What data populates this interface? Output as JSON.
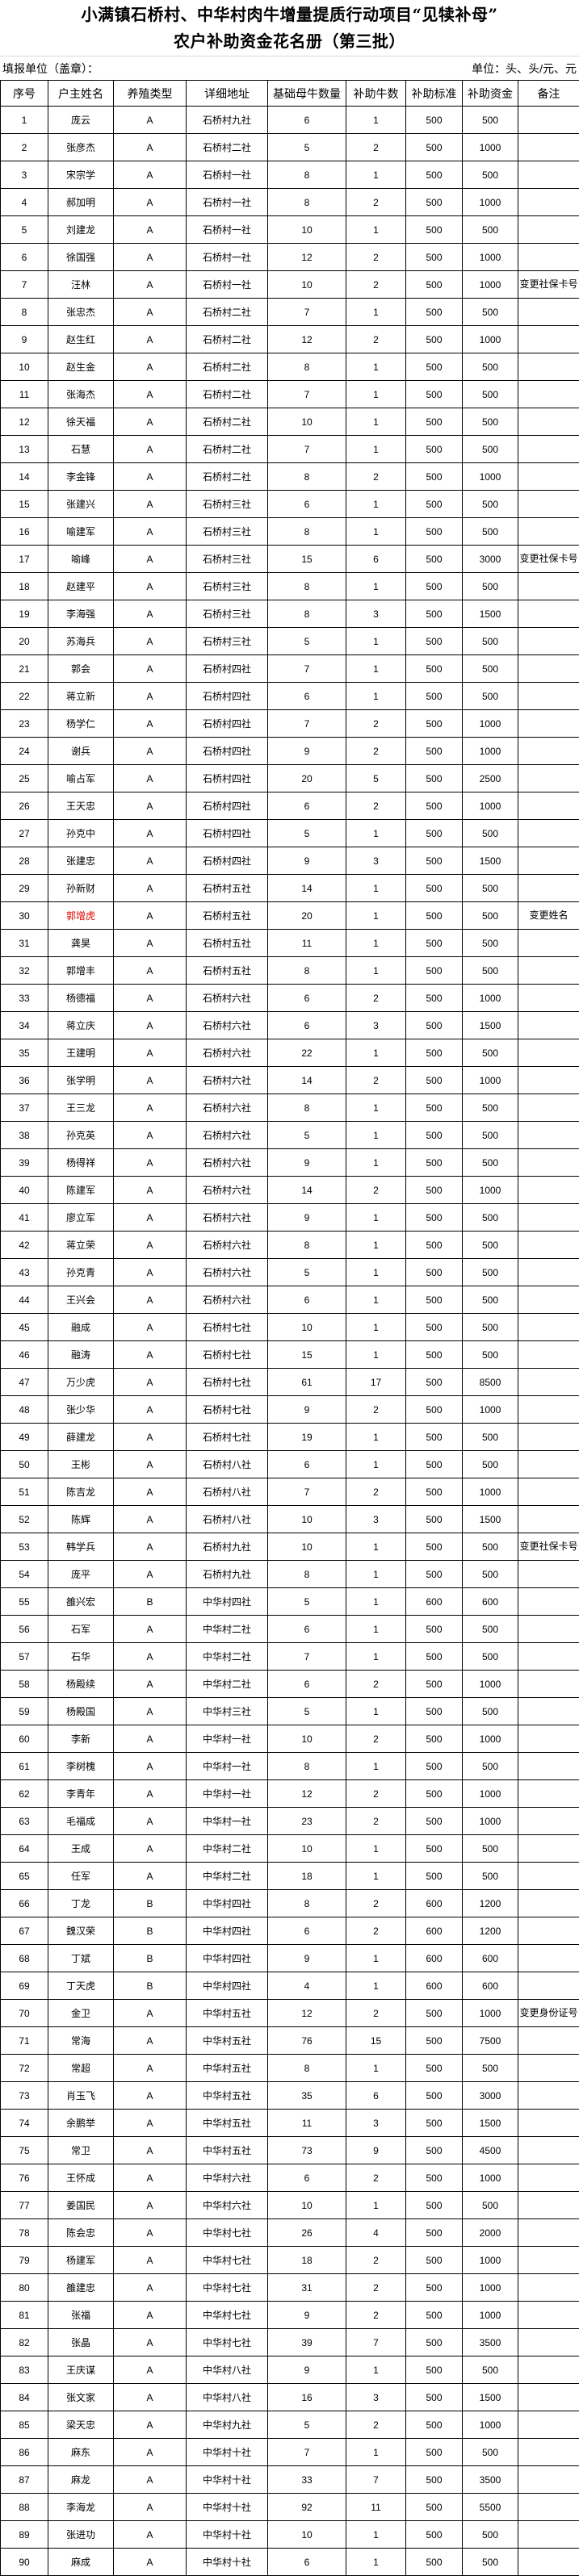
{
  "title": {
    "line1": "小满镇石桥村、中华村肉牛增量提质行动项目“见犊补母”",
    "line2": "农户补助资金花名册（第三批）"
  },
  "unit_left": "填报单位（盖章）：",
  "unit_right": "单位：头、头/元、元",
  "headers": [
    "序号",
    "户主姓名",
    "养殖类型",
    "详细地址",
    "基础母牛数量",
    "补助牛数",
    "补助标准",
    "补助资金",
    "备注"
  ],
  "highlight_color": "#e00000",
  "rows": [
    [
      "1",
      "庞云",
      "A",
      "石桥村九社",
      "6",
      "1",
      "500",
      "500",
      ""
    ],
    [
      "2",
      "张彦杰",
      "A",
      "石桥村二社",
      "5",
      "2",
      "500",
      "1000",
      ""
    ],
    [
      "3",
      "宋宗学",
      "A",
      "石桥村一社",
      "8",
      "1",
      "500",
      "500",
      ""
    ],
    [
      "4",
      "郝加明",
      "A",
      "石桥村一社",
      "8",
      "2",
      "500",
      "1000",
      ""
    ],
    [
      "5",
      "刘建龙",
      "A",
      "石桥村一社",
      "10",
      "1",
      "500",
      "500",
      ""
    ],
    [
      "6",
      "徐国强",
      "A",
      "石桥村一社",
      "12",
      "2",
      "500",
      "1000",
      ""
    ],
    [
      "7",
      "汪林",
      "A",
      "石桥村一社",
      "10",
      "2",
      "500",
      "1000",
      "变更社保卡号"
    ],
    [
      "8",
      "张忠杰",
      "A",
      "石桥村二社",
      "7",
      "1",
      "500",
      "500",
      ""
    ],
    [
      "9",
      "赵生红",
      "A",
      "石桥村二社",
      "12",
      "2",
      "500",
      "1000",
      ""
    ],
    [
      "10",
      "赵生金",
      "A",
      "石桥村二社",
      "8",
      "1",
      "500",
      "500",
      ""
    ],
    [
      "11",
      "张海杰",
      "A",
      "石桥村二社",
      "7",
      "1",
      "500",
      "500",
      ""
    ],
    [
      "12",
      "徐天福",
      "A",
      "石桥村二社",
      "10",
      "1",
      "500",
      "500",
      ""
    ],
    [
      "13",
      "石慧",
      "A",
      "石桥村二社",
      "7",
      "1",
      "500",
      "500",
      ""
    ],
    [
      "14",
      "李金锋",
      "A",
      "石桥村二社",
      "8",
      "2",
      "500",
      "1000",
      ""
    ],
    [
      "15",
      "张建兴",
      "A",
      "石桥村三社",
      "6",
      "1",
      "500",
      "500",
      ""
    ],
    [
      "16",
      "喻建军",
      "A",
      "石桥村三社",
      "8",
      "1",
      "500",
      "500",
      ""
    ],
    [
      "17",
      "喻峰",
      "A",
      "石桥村三社",
      "15",
      "6",
      "500",
      "3000",
      "变更社保卡号"
    ],
    [
      "18",
      "赵建平",
      "A",
      "石桥村三社",
      "8",
      "1",
      "500",
      "500",
      ""
    ],
    [
      "19",
      "李海强",
      "A",
      "石桥村三社",
      "8",
      "3",
      "500",
      "1500",
      ""
    ],
    [
      "20",
      "苏海兵",
      "A",
      "石桥村三社",
      "5",
      "1",
      "500",
      "500",
      ""
    ],
    [
      "21",
      "郭会",
      "A",
      "石桥村四社",
      "7",
      "1",
      "500",
      "500",
      ""
    ],
    [
      "22",
      "蒋立新",
      "A",
      "石桥村四社",
      "6",
      "1",
      "500",
      "500",
      ""
    ],
    [
      "23",
      "杨学仁",
      "A",
      "石桥村四社",
      "7",
      "2",
      "500",
      "1000",
      ""
    ],
    [
      "24",
      "谢兵",
      "A",
      "石桥村四社",
      "9",
      "2",
      "500",
      "1000",
      ""
    ],
    [
      "25",
      "喻占军",
      "A",
      "石桥村四社",
      "20",
      "5",
      "500",
      "2500",
      ""
    ],
    [
      "26",
      "王天忠",
      "A",
      "石桥村四社",
      "6",
      "2",
      "500",
      "1000",
      ""
    ],
    [
      "27",
      "孙克中",
      "A",
      "石桥村四社",
      "5",
      "1",
      "500",
      "500",
      ""
    ],
    [
      "28",
      "张建忠",
      "A",
      "石桥村四社",
      "9",
      "3",
      "500",
      "1500",
      ""
    ],
    [
      "29",
      "孙新财",
      "A",
      "石桥村五社",
      "14",
      "1",
      "500",
      "500",
      ""
    ],
    [
      "30",
      "郭增虎",
      "A",
      "石桥村五社",
      "20",
      "1",
      "500",
      "500",
      "变更姓名"
    ],
    [
      "31",
      "龚昊",
      "A",
      "石桥村五社",
      "11",
      "1",
      "500",
      "500",
      ""
    ],
    [
      "32",
      "郭增丰",
      "A",
      "石桥村五社",
      "8",
      "1",
      "500",
      "500",
      ""
    ],
    [
      "33",
      "杨德福",
      "A",
      "石桥村六社",
      "6",
      "2",
      "500",
      "1000",
      ""
    ],
    [
      "34",
      "蒋立庆",
      "A",
      "石桥村六社",
      "6",
      "3",
      "500",
      "1500",
      ""
    ],
    [
      "35",
      "王建明",
      "A",
      "石桥村六社",
      "22",
      "1",
      "500",
      "500",
      ""
    ],
    [
      "36",
      "张学明",
      "A",
      "石桥村六社",
      "14",
      "2",
      "500",
      "1000",
      ""
    ],
    [
      "37",
      "王三龙",
      "A",
      "石桥村六社",
      "8",
      "1",
      "500",
      "500",
      ""
    ],
    [
      "38",
      "孙克英",
      "A",
      "石桥村六社",
      "5",
      "1",
      "500",
      "500",
      ""
    ],
    [
      "39",
      "杨得祥",
      "A",
      "石桥村六社",
      "9",
      "1",
      "500",
      "500",
      ""
    ],
    [
      "40",
      "陈建军",
      "A",
      "石桥村六社",
      "14",
      "2",
      "500",
      "1000",
      ""
    ],
    [
      "41",
      "廖立军",
      "A",
      "石桥村六社",
      "9",
      "1",
      "500",
      "500",
      ""
    ],
    [
      "42",
      "蒋立荣",
      "A",
      "石桥村六社",
      "8",
      "1",
      "500",
      "500",
      ""
    ],
    [
      "43",
      "孙克青",
      "A",
      "石桥村六社",
      "5",
      "1",
      "500",
      "500",
      ""
    ],
    [
      "44",
      "王兴会",
      "A",
      "石桥村六社",
      "6",
      "1",
      "500",
      "500",
      ""
    ],
    [
      "45",
      "融成",
      "A",
      "石桥村七社",
      "10",
      "1",
      "500",
      "500",
      ""
    ],
    [
      "46",
      "融涛",
      "A",
      "石桥村七社",
      "15",
      "1",
      "500",
      "500",
      ""
    ],
    [
      "47",
      "万少虎",
      "A",
      "石桥村七社",
      "61",
      "17",
      "500",
      "8500",
      ""
    ],
    [
      "48",
      "张少华",
      "A",
      "石桥村七社",
      "9",
      "2",
      "500",
      "1000",
      ""
    ],
    [
      "49",
      "薛建龙",
      "A",
      "石桥村七社",
      "19",
      "1",
      "500",
      "500",
      ""
    ],
    [
      "50",
      "王彬",
      "A",
      "石桥村八社",
      "6",
      "1",
      "500",
      "500",
      ""
    ],
    [
      "51",
      "陈吉龙",
      "A",
      "石桥村八社",
      "7",
      "2",
      "500",
      "1000",
      ""
    ],
    [
      "52",
      "陈辉",
      "A",
      "石桥村八社",
      "10",
      "3",
      "500",
      "1500",
      ""
    ],
    [
      "53",
      "韩学兵",
      "A",
      "石桥村九社",
      "10",
      "1",
      "500",
      "500",
      "变更社保卡号"
    ],
    [
      "54",
      "庞平",
      "A",
      "石桥村九社",
      "8",
      "1",
      "500",
      "500",
      ""
    ],
    [
      "55",
      "雒兴宏",
      "B",
      "中华村四社",
      "5",
      "1",
      "600",
      "600",
      ""
    ],
    [
      "56",
      "石军",
      "A",
      "中华村二社",
      "6",
      "1",
      "500",
      "500",
      ""
    ],
    [
      "57",
      "石华",
      "A",
      "中华村二社",
      "7",
      "1",
      "500",
      "500",
      ""
    ],
    [
      "58",
      "杨殿续",
      "A",
      "中华村二社",
      "6",
      "2",
      "500",
      "1000",
      ""
    ],
    [
      "59",
      "杨殿国",
      "A",
      "中华村三社",
      "5",
      "1",
      "500",
      "500",
      ""
    ],
    [
      "60",
      "李新",
      "A",
      "中华村一社",
      "10",
      "2",
      "500",
      "1000",
      ""
    ],
    [
      "61",
      "李树槐",
      "A",
      "中华村一社",
      "8",
      "1",
      "500",
      "500",
      ""
    ],
    [
      "62",
      "李青年",
      "A",
      "中华村一社",
      "12",
      "2",
      "500",
      "1000",
      ""
    ],
    [
      "63",
      "毛福成",
      "A",
      "中华村一社",
      "23",
      "2",
      "500",
      "1000",
      ""
    ],
    [
      "64",
      "王成",
      "A",
      "中华村二社",
      "10",
      "1",
      "500",
      "500",
      ""
    ],
    [
      "65",
      "任军",
      "A",
      "中华村二社",
      "18",
      "1",
      "500",
      "500",
      ""
    ],
    [
      "66",
      "丁龙",
      "B",
      "中华村四社",
      "8",
      "2",
      "600",
      "1200",
      ""
    ],
    [
      "67",
      "魏汉荣",
      "B",
      "中华村四社",
      "6",
      "2",
      "600",
      "1200",
      ""
    ],
    [
      "68",
      "丁斌",
      "B",
      "中华村四社",
      "9",
      "1",
      "600",
      "600",
      ""
    ],
    [
      "69",
      "丁天虎",
      "B",
      "中华村四社",
      "4",
      "1",
      "600",
      "600",
      ""
    ],
    [
      "70",
      "金卫",
      "A",
      "中华村五社",
      "12",
      "2",
      "500",
      "1000",
      "变更身份证号"
    ],
    [
      "71",
      "常海",
      "A",
      "中华村五社",
      "76",
      "15",
      "500",
      "7500",
      ""
    ],
    [
      "72",
      "常超",
      "A",
      "中华村五社",
      "8",
      "1",
      "500",
      "500",
      ""
    ],
    [
      "73",
      "肖玉飞",
      "A",
      "中华村五社",
      "35",
      "6",
      "500",
      "3000",
      ""
    ],
    [
      "74",
      "余鹏举",
      "A",
      "中华村五社",
      "11",
      "3",
      "500",
      "1500",
      ""
    ],
    [
      "75",
      "常卫",
      "A",
      "中华村五社",
      "73",
      "9",
      "500",
      "4500",
      ""
    ],
    [
      "76",
      "王怀成",
      "A",
      "中华村六社",
      "6",
      "2",
      "500",
      "1000",
      ""
    ],
    [
      "77",
      "姜国民",
      "A",
      "中华村六社",
      "10",
      "1",
      "500",
      "500",
      ""
    ],
    [
      "78",
      "陈会忠",
      "A",
      "中华村七社",
      "26",
      "4",
      "500",
      "2000",
      ""
    ],
    [
      "79",
      "杨建军",
      "A",
      "中华村七社",
      "18",
      "2",
      "500",
      "1000",
      ""
    ],
    [
      "80",
      "雒建忠",
      "A",
      "中华村七社",
      "31",
      "2",
      "500",
      "1000",
      ""
    ],
    [
      "81",
      "张福",
      "A",
      "中华村七社",
      "9",
      "2",
      "500",
      "1000",
      ""
    ],
    [
      "82",
      "张晶",
      "A",
      "中华村七社",
      "39",
      "7",
      "500",
      "3500",
      ""
    ],
    [
      "83",
      "王庆谋",
      "A",
      "中华村八社",
      "9",
      "1",
      "500",
      "500",
      ""
    ],
    [
      "84",
      "张文家",
      "A",
      "中华村八社",
      "16",
      "3",
      "500",
      "1500",
      ""
    ],
    [
      "85",
      "梁天忠",
      "A",
      "中华村九社",
      "5",
      "2",
      "500",
      "1000",
      ""
    ],
    [
      "86",
      "麻东",
      "A",
      "中华村十社",
      "7",
      "1",
      "500",
      "500",
      ""
    ],
    [
      "87",
      "麻龙",
      "A",
      "中华村十社",
      "33",
      "7",
      "500",
      "3500",
      ""
    ],
    [
      "88",
      "李海龙",
      "A",
      "中华村十社",
      "92",
      "11",
      "500",
      "5500",
      ""
    ],
    [
      "89",
      "张进功",
      "A",
      "中华村十社",
      "10",
      "1",
      "500",
      "500",
      ""
    ],
    [
      "90",
      "麻成",
      "A",
      "中华村十社",
      "6",
      "1",
      "500",
      "500",
      ""
    ]
  ],
  "highlighted_rows": [
    "30"
  ]
}
